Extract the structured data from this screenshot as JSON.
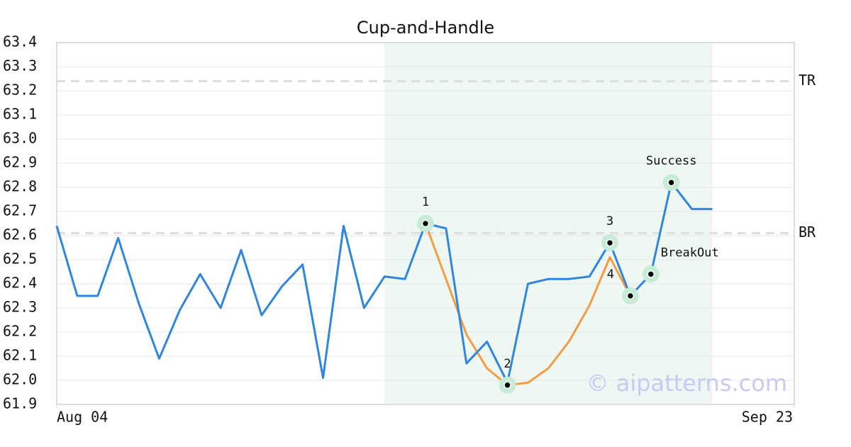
{
  "chart_data": {
    "type": "line",
    "title": "Cup-and-Handle",
    "x": [
      0,
      1,
      2,
      3,
      4,
      5,
      6,
      7,
      8,
      9,
      10,
      11,
      12,
      13,
      14,
      15,
      16,
      17,
      18,
      19,
      20,
      21,
      22,
      23,
      24,
      25,
      26,
      27,
      28,
      29,
      30,
      31,
      32
    ],
    "series": [
      {
        "color": "#2e86de",
        "values": [
          62.64,
          62.35,
          62.35,
          62.59,
          62.32,
          62.09,
          62.29,
          62.44,
          62.3,
          62.54,
          62.27,
          62.39,
          62.48,
          62.01,
          62.64,
          62.3,
          62.43,
          62.42,
          62.65,
          62.63,
          62.07,
          62.16,
          61.99,
          62.4,
          62.42,
          62.42,
          62.43,
          62.57,
          62.35,
          62.44,
          62.82,
          62.71,
          62.71
        ]
      },
      {
        "color": "#f39c44",
        "x": [
          18,
          19,
          20,
          21,
          22,
          23,
          24,
          25,
          26,
          27,
          28
        ],
        "values": [
          62.65,
          62.42,
          62.19,
          62.05,
          61.98,
          61.99,
          62.05,
          62.16,
          62.31,
          62.51,
          62.35
        ]
      }
    ],
    "xlim": [
      0,
      36
    ],
    "xticks": [
      {
        "value": 0,
        "label": "Aug 04"
      },
      {
        "value": 36,
        "label": "Sep 23"
      }
    ],
    "ylim": [
      61.9,
      63.4
    ],
    "yticks": [
      61.9,
      {
        "value": 62.0,
        "label": "62.0"
      },
      62.1,
      62.2,
      62.3,
      62.4,
      62.5,
      62.6,
      62.7,
      62.8,
      62.9,
      {
        "value": 63.0,
        "label": "63.0"
      },
      63.1,
      63.2,
      63.3,
      63.4
    ],
    "grid": true,
    "highlight_xrange": [
      16,
      32
    ],
    "hlines": [
      {
        "label": "TR",
        "value": 63.24
      },
      {
        "label": "BR",
        "value": 62.61
      }
    ],
    "annotations": [
      {
        "label": "1",
        "x": 18,
        "y": 62.65
      },
      {
        "label": "2",
        "x": 22,
        "y": 61.98
      },
      {
        "label": "3",
        "x": 27,
        "y": 62.57
      },
      {
        "label": "4",
        "x": 28,
        "y": 62.35
      },
      {
        "label": "BreakOut",
        "x": 29,
        "y": 62.44
      },
      {
        "label": "Success",
        "x": 30,
        "y": 62.82
      }
    ],
    "watermark": "© aipatterns.com"
  }
}
